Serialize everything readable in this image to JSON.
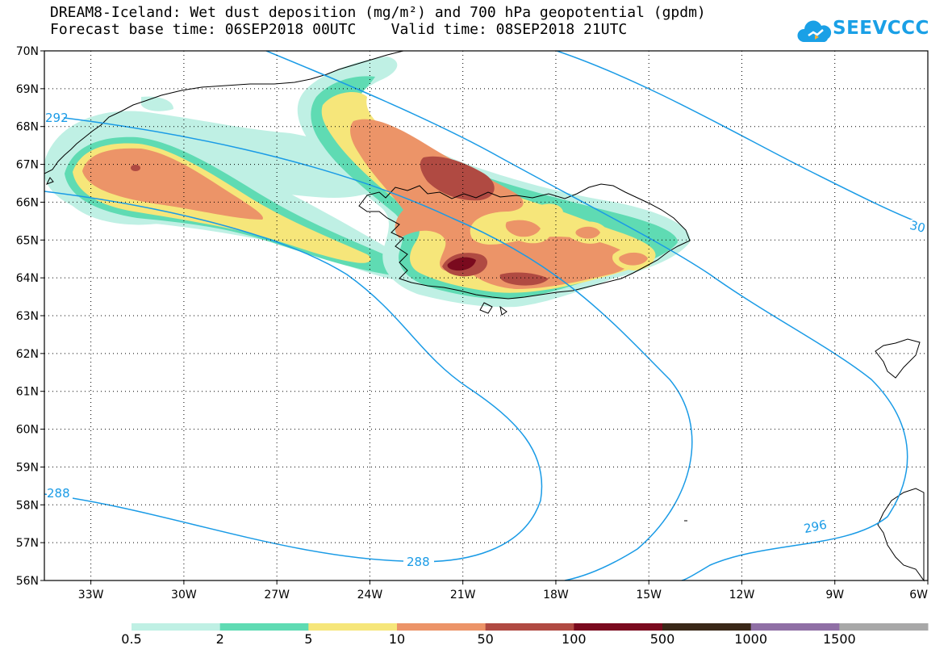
{
  "title": {
    "line1": "DREAM8-Iceland: Wet dust deposition (mg/m²) and 700 hPa geopotential (gpdm)",
    "line2": "Forecast base time: 06SEP2018 00UTC    Valid time: 08SEP2018 21UTC"
  },
  "logo": {
    "text": "SEEVCCC",
    "icon": "cloud-icon",
    "color": "#1aa0e6"
  },
  "axes": {
    "lat_labels": [
      "70N",
      "69N",
      "68N",
      "67N",
      "66N",
      "65N",
      "64N",
      "63N",
      "62N",
      "61N",
      "60N",
      "59N",
      "58N",
      "57N",
      "56N"
    ],
    "lon_labels": [
      "33W",
      "30W",
      "27W",
      "24W",
      "21W",
      "18W",
      "15W",
      "12W",
      "9W",
      "6W"
    ],
    "lat_range": [
      56,
      70
    ],
    "lon_range": [
      -34.5,
      -6
    ],
    "grid": "dotted"
  },
  "contours": {
    "color": "#1a9be6",
    "labels": [
      "292",
      "288",
      "288",
      "296",
      "30"
    ]
  },
  "legend": {
    "colors": [
      "#bff0e4",
      "#5fdbb3",
      "#f6e67a",
      "#ec9468",
      "#b04a42",
      "#7a0a1e",
      "#3a2818",
      "#8f6fa5",
      "#a8a8a8"
    ],
    "labels": [
      "0.5",
      "2",
      "5",
      "10",
      "50",
      "100",
      "500",
      "1000",
      "1500"
    ]
  }
}
